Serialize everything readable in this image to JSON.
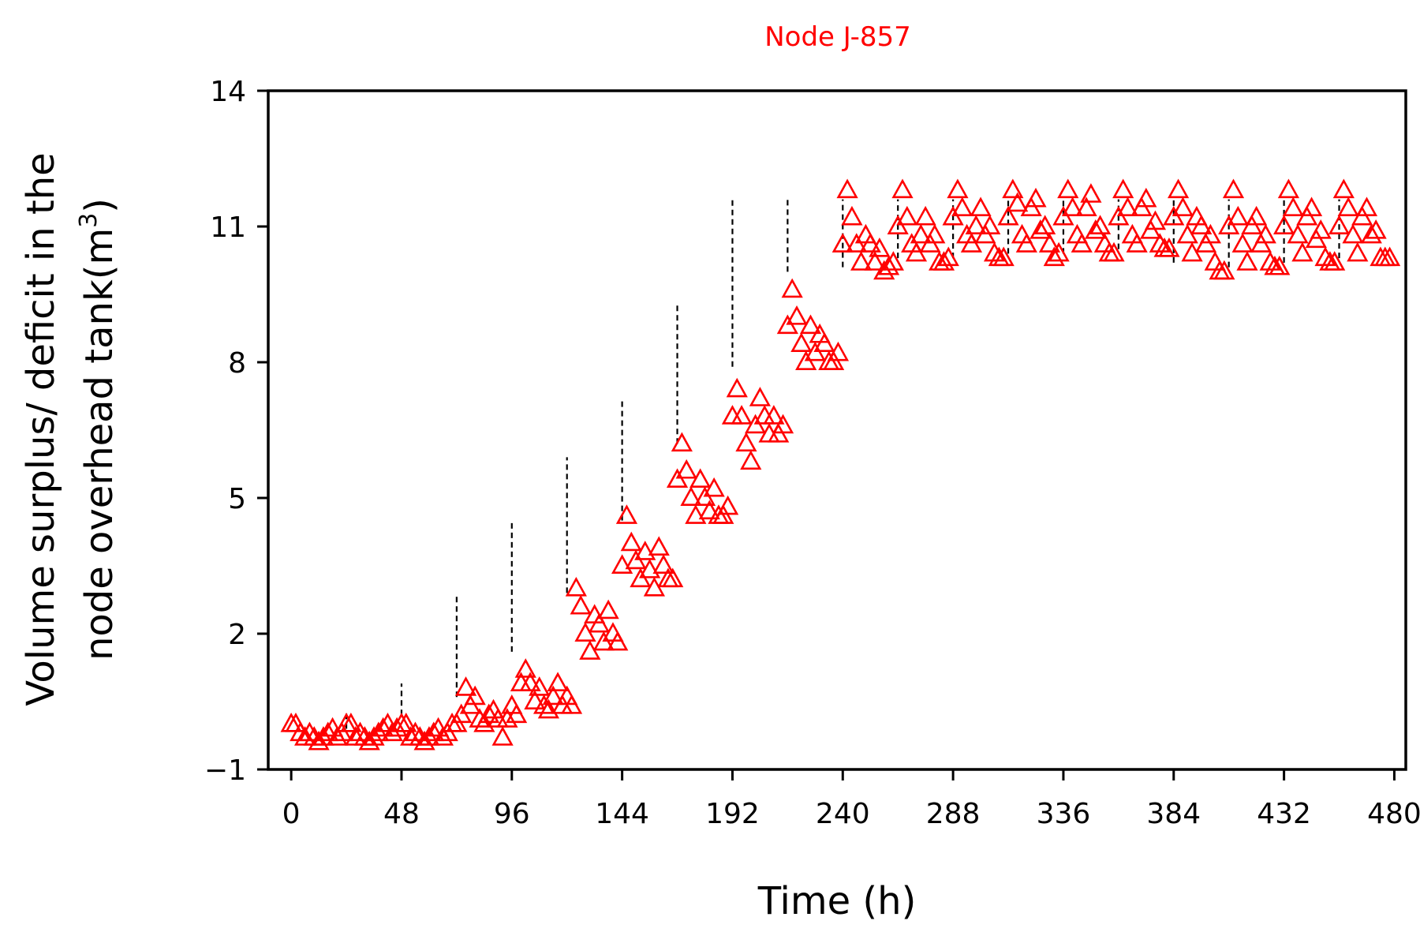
{
  "chart_data": {
    "type": "scatter",
    "title": "Node J-857",
    "xlabel": "Time (h)",
    "ylabel_line1": "Volume surplus/ deficit in the",
    "ylabel_line2_prefix": "node overhead tank(m",
    "ylabel_superscript": "3",
    "ylabel_line2_suffix": ")",
    "xlim": [
      -10,
      485
    ],
    "ylim": [
      -1,
      14
    ],
    "xticks": [
      0,
      48,
      96,
      144,
      192,
      240,
      288,
      336,
      384,
      432,
      480
    ],
    "xtick_labels": [
      "0",
      "48",
      "96",
      "144",
      "192",
      "240",
      "288",
      "336",
      "384",
      "432",
      "480"
    ],
    "yticks": [
      -1,
      2,
      5,
      8,
      11,
      14
    ],
    "ytick_labels": [
      "−1",
      "2",
      "5",
      "8",
      "11",
      "14"
    ],
    "marker": "open-triangle",
    "connector": "dashed vertical lines at day boundaries",
    "colors": {
      "marker": "#ff0000",
      "title": "#ff0000",
      "connector": "#000000",
      "axis": "#000000"
    },
    "series": [
      {
        "name": "Volume surplus/deficit",
        "daily_start_values": [
          0.0,
          0.3,
          0.9,
          2.9,
          4.5,
          5.9,
          7.2,
          9.3,
          11.6,
          11.6,
          11.6,
          11.6,
          11.6,
          11.6,
          11.6,
          11.6,
          11.6,
          11.6,
          11.6,
          11.6
        ],
        "daily_end_values": [
          -0.1,
          0.2,
          0.6,
          1.6,
          2.9,
          4.5,
          6.2,
          7.9,
          10.0,
          10.1,
          10.3,
          10.3,
          10.4,
          10.4,
          10.5,
          10.2,
          10.1,
          10.2,
          10.3,
          10.3
        ],
        "x": [
          0,
          2,
          4,
          6,
          8,
          10,
          12,
          14,
          16,
          18,
          20,
          22,
          24,
          26,
          28,
          30,
          32,
          34,
          36,
          38,
          40,
          42,
          44,
          46,
          48,
          50,
          52,
          54,
          56,
          58,
          60,
          62,
          64,
          66,
          68,
          70,
          72,
          74,
          76,
          78,
          80,
          82,
          84,
          86,
          88,
          90,
          92,
          94,
          96,
          98,
          100,
          102,
          104,
          106,
          108,
          110,
          112,
          114,
          116,
          118,
          120,
          122,
          124,
          126,
          128,
          130,
          132,
          134,
          136,
          138,
          140,
          142,
          144,
          146,
          148,
          150,
          152,
          154,
          156,
          158,
          160,
          162,
          164,
          166,
          168,
          170,
          172,
          174,
          176,
          178,
          180,
          182,
          184,
          186,
          188,
          190,
          192,
          194,
          196,
          198,
          200,
          202,
          204,
          206,
          208,
          210,
          212,
          214,
          216,
          218,
          220,
          222,
          224,
          226,
          228,
          230,
          232,
          234,
          236,
          238,
          240,
          242,
          244,
          246,
          248,
          250,
          252,
          254,
          256,
          258,
          260,
          262,
          264,
          266,
          268,
          270,
          272,
          274,
          276,
          278,
          280,
          282,
          284,
          286,
          288,
          290,
          292,
          294,
          296,
          298,
          300,
          302,
          304,
          306,
          308,
          310,
          312,
          314,
          316,
          318,
          320,
          322,
          324,
          326,
          328,
          330,
          332,
          334,
          336,
          338,
          340,
          342,
          344,
          346,
          348,
          350,
          352,
          354,
          356,
          358,
          360,
          362,
          364,
          366,
          368,
          370,
          372,
          374,
          376,
          378,
          380,
          382,
          384,
          386,
          388,
          390,
          392,
          394,
          396,
          398,
          400,
          402,
          404,
          406,
          408,
          410,
          412,
          414,
          416,
          418,
          420,
          422,
          424,
          426,
          428,
          430,
          432,
          434,
          436,
          438,
          440,
          442,
          444,
          446,
          448,
          450,
          452,
          454,
          456,
          458,
          460,
          462,
          464,
          466,
          468,
          470,
          472,
          474,
          476,
          478
        ],
        "y": [
          0.0,
          0.0,
          -0.2,
          -0.3,
          -0.2,
          -0.3,
          -0.4,
          -0.3,
          -0.2,
          -0.1,
          -0.3,
          -0.2,
          0.0,
          0.0,
          -0.3,
          -0.2,
          -0.3,
          -0.4,
          -0.3,
          -0.2,
          -0.1,
          0.0,
          -0.2,
          -0.1,
          0.0,
          0.0,
          -0.3,
          -0.2,
          -0.3,
          -0.4,
          -0.3,
          -0.2,
          -0.1,
          -0.3,
          -0.2,
          0.0,
          0.0,
          0.2,
          0.8,
          0.4,
          0.6,
          0.1,
          0.0,
          0.2,
          0.3,
          0.1,
          -0.3,
          0.1,
          0.4,
          0.2,
          0.9,
          1.2,
          0.9,
          0.5,
          0.8,
          0.4,
          0.3,
          0.6,
          0.9,
          0.4,
          0.6,
          0.4,
          3.0,
          2.6,
          2.0,
          1.6,
          2.4,
          2.2,
          1.8,
          2.5,
          2.0,
          1.8,
          3.5,
          4.6,
          4.0,
          3.6,
          3.2,
          3.8,
          3.4,
          3.0,
          3.9,
          3.5,
          3.2,
          3.2,
          5.4,
          6.2,
          5.6,
          5.0,
          4.6,
          5.4,
          5.0,
          4.7,
          5.2,
          4.6,
          4.6,
          4.8,
          6.8,
          7.4,
          6.8,
          6.2,
          5.8,
          6.6,
          7.2,
          6.8,
          6.4,
          6.8,
          6.4,
          6.6,
          8.8,
          9.6,
          9.0,
          8.4,
          8.0,
          8.8,
          8.2,
          8.6,
          8.4,
          8.0,
          8.0,
          8.2,
          10.6,
          11.8,
          11.2,
          10.6,
          10.2,
          10.8,
          10.6,
          10.2,
          10.5,
          10.0,
          10.1,
          10.2,
          11.0,
          11.8,
          11.2,
          10.6,
          10.4,
          10.8,
          11.2,
          10.6,
          10.8,
          10.2,
          10.2,
          10.3,
          11.2,
          11.8,
          11.4,
          10.8,
          10.6,
          11.0,
          11.4,
          10.8,
          11.0,
          10.4,
          10.3,
          10.3,
          11.2,
          11.8,
          11.5,
          10.8,
          10.6,
          11.4,
          11.6,
          10.9,
          11.0,
          10.6,
          10.3,
          10.4,
          11.2,
          11.8,
          11.4,
          10.8,
          10.6,
          11.4,
          11.7,
          10.9,
          11.0,
          10.6,
          10.4,
          10.4,
          11.2,
          11.8,
          11.4,
          10.8,
          10.6,
          11.4,
          11.6,
          10.9,
          11.1,
          10.6,
          10.5,
          10.5,
          11.2,
          11.8,
          11.4,
          10.8,
          10.4,
          11.2,
          11.0,
          10.6,
          10.8,
          10.2,
          10.0,
          10.0,
          11.0,
          11.8,
          11.2,
          10.6,
          10.2,
          11.0,
          11.2,
          10.6,
          10.8,
          10.2,
          10.1,
          10.1,
          11.0,
          11.8,
          11.4,
          10.8,
          10.4,
          11.2,
          11.4,
          10.7,
          10.9,
          10.3,
          10.2,
          10.2,
          11.0,
          11.8,
          11.4,
          10.8,
          10.4,
          11.2,
          11.4,
          10.8,
          10.9,
          10.3,
          10.3,
          10.3
        ]
      }
    ]
  }
}
